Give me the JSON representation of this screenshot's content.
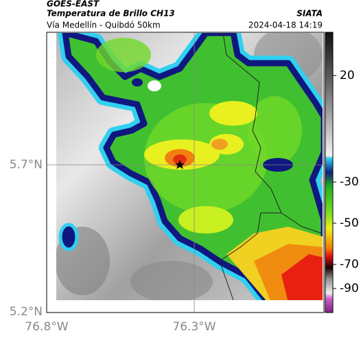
{
  "header": {
    "source": "GOES-EAST",
    "title": "Temperatura de Brillo CH13",
    "org": "SIATA",
    "subtitle": "Vía Medellín - Quibdó 50km",
    "timestamp": "2024-04-18 14:19"
  },
  "map": {
    "lat_labels": [
      "5.7°N",
      "5.2°N"
    ],
    "lon_labels": [
      "76.8°W",
      "76.3°W"
    ]
  },
  "colorbar": {
    "tick_labels": [
      "20",
      "-30",
      "-50",
      "-70",
      "-90"
    ]
  }
}
